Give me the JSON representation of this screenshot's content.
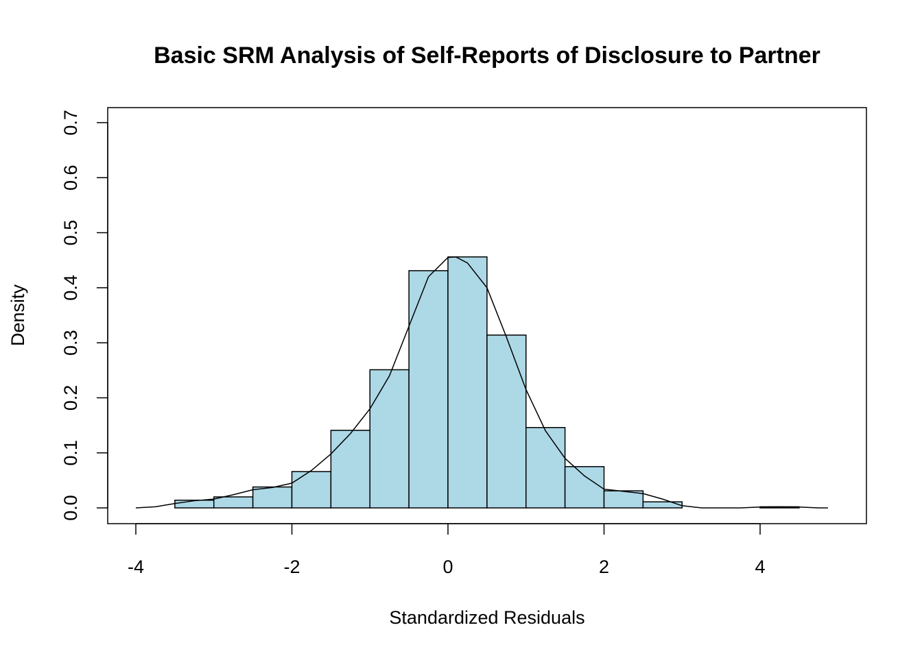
{
  "chart_data": {
    "type": "bar",
    "title": "Basic SRM Analysis of Self-Reports of Disclosure to Partner",
    "xlabel": "Standardized Residuals",
    "ylabel": "Density",
    "xlim": [
      -4,
      5
    ],
    "ylim": [
      0,
      0.7
    ],
    "x_ticks": [
      -4,
      -2,
      0,
      2,
      4
    ],
    "x_tick_labels": [
      "-4",
      "-2",
      "0",
      "2",
      "4"
    ],
    "y_ticks": [
      0,
      0.1,
      0.2,
      0.3,
      0.4,
      0.5,
      0.6,
      0.7
    ],
    "y_tick_labels": [
      "0.0",
      "0.1",
      "0.2",
      "0.3",
      "0.4",
      "0.5",
      "0.6",
      "0.7"
    ],
    "bar_color": "#ADD8E6",
    "bins": [
      {
        "from": -3.5,
        "to": -3.0,
        "density": 0.014
      },
      {
        "from": -3.0,
        "to": -2.5,
        "density": 0.02
      },
      {
        "from": -2.5,
        "to": -2.0,
        "density": 0.038
      },
      {
        "from": -2.0,
        "to": -1.5,
        "density": 0.066
      },
      {
        "from": -1.5,
        "to": -1.0,
        "density": 0.141
      },
      {
        "from": -1.0,
        "to": -0.5,
        "density": 0.251
      },
      {
        "from": -0.5,
        "to": 0.0,
        "density": 0.431
      },
      {
        "from": 0.0,
        "to": 0.5,
        "density": 0.456
      },
      {
        "from": 0.5,
        "to": 1.0,
        "density": 0.314
      },
      {
        "from": 1.0,
        "to": 1.5,
        "density": 0.146
      },
      {
        "from": 1.5,
        "to": 2.0,
        "density": 0.075
      },
      {
        "from": 2.0,
        "to": 2.5,
        "density": 0.031
      },
      {
        "from": 2.5,
        "to": 3.0,
        "density": 0.011
      },
      {
        "from": 3.0,
        "to": 3.5,
        "density": 0.0
      },
      {
        "from": 3.5,
        "to": 4.0,
        "density": 0.0
      },
      {
        "from": 4.0,
        "to": 4.5,
        "density": 0.002
      }
    ],
    "density_curve": {
      "x": [
        -4.0,
        -3.75,
        -3.5,
        -3.25,
        -3.0,
        -2.75,
        -2.5,
        -2.25,
        -2.0,
        -1.75,
        -1.5,
        -1.25,
        -1.0,
        -0.75,
        -0.5,
        -0.25,
        0.0,
        0.1,
        0.25,
        0.5,
        0.75,
        1.0,
        1.25,
        1.5,
        1.75,
        2.0,
        2.25,
        2.5,
        2.75,
        3.0,
        3.25,
        3.5,
        3.75,
        4.0,
        4.25,
        4.5,
        4.75,
        4.87
      ],
      "y": [
        0.0,
        0.002,
        0.008,
        0.013,
        0.016,
        0.024,
        0.033,
        0.037,
        0.045,
        0.068,
        0.098,
        0.135,
        0.18,
        0.24,
        0.33,
        0.42,
        0.455,
        0.456,
        0.445,
        0.4,
        0.31,
        0.215,
        0.14,
        0.09,
        0.058,
        0.034,
        0.03,
        0.026,
        0.016,
        0.004,
        0.0,
        0.0,
        0.0,
        0.0015,
        0.002,
        0.0015,
        0.0,
        0.0
      ]
    }
  }
}
